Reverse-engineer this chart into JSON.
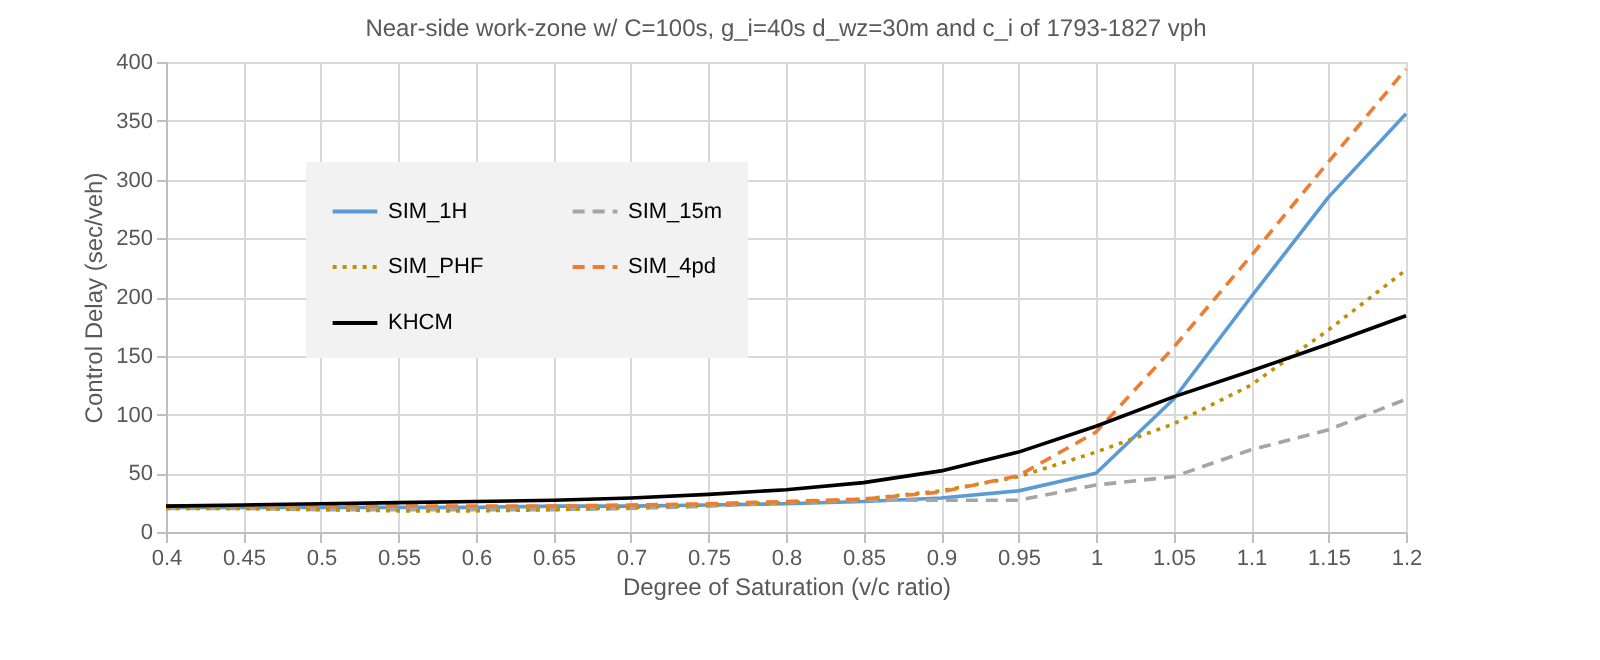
{
  "chart_data": {
    "type": "line",
    "title": "Near-side work-zone w/ C=100s, g_i=40s d_wz=30m and c_i of 1793-1827  vph",
    "xlabel": "Degree of Saturation (v/c ratio)",
    "ylabel": "Control Delay (sec/veh)",
    "x": [
      0.4,
      0.45,
      0.5,
      0.55,
      0.6,
      0.65,
      0.7,
      0.75,
      0.8,
      0.85,
      0.9,
      0.95,
      1.0,
      1.05,
      1.1,
      1.15,
      1.2
    ],
    "series": [
      {
        "name": "SIM_1H",
        "color": "#5b9bd5",
        "line_style": "solid",
        "values": [
          21,
          21,
          21,
          21,
          21,
          22,
          22,
          23,
          24,
          26,
          29,
          35,
          50,
          113,
          200,
          285,
          356
        ]
      },
      {
        "name": "SIM_15m",
        "color": "#a5a5a5",
        "line_style": "dashed",
        "values": [
          20,
          20,
          19,
          19,
          19,
          19,
          20,
          22,
          25,
          27,
          27,
          27,
          40,
          47,
          70,
          87,
          113
        ]
      },
      {
        "name": "SIM_PHF",
        "color": "#bf9000",
        "line_style": "dotted",
        "values": [
          20,
          20,
          19,
          18,
          18,
          19,
          21,
          23,
          25,
          28,
          35,
          47,
          68,
          92,
          125,
          172,
          223
        ]
      },
      {
        "name": "SIM_4pd",
        "color": "#ed7d31",
        "line_style": "dashed",
        "values": [
          22,
          22,
          22,
          22,
          22,
          22,
          23,
          24,
          26,
          28,
          34,
          48,
          85,
          157,
          235,
          315,
          394
        ]
      },
      {
        "name": "KHCM",
        "color": "#000000",
        "line_style": "solid",
        "values": [
          22,
          23,
          24,
          25,
          26,
          27,
          29,
          32,
          36,
          42,
          52,
          68,
          90,
          115,
          137,
          160,
          184
        ]
      }
    ],
    "xlim": [
      0.4,
      1.2
    ],
    "xticks": [
      0.4,
      0.45,
      0.5,
      0.55,
      0.6,
      0.65,
      0.7,
      0.75,
      0.8,
      0.85,
      0.9,
      0.95,
      1,
      1.05,
      1.1,
      1.15,
      1.2
    ],
    "ylim": [
      0,
      400
    ],
    "yticks": [
      0,
      50,
      100,
      150,
      200,
      250,
      300,
      350,
      400
    ],
    "grid": true,
    "legend": "top left",
    "marker": "none"
  }
}
